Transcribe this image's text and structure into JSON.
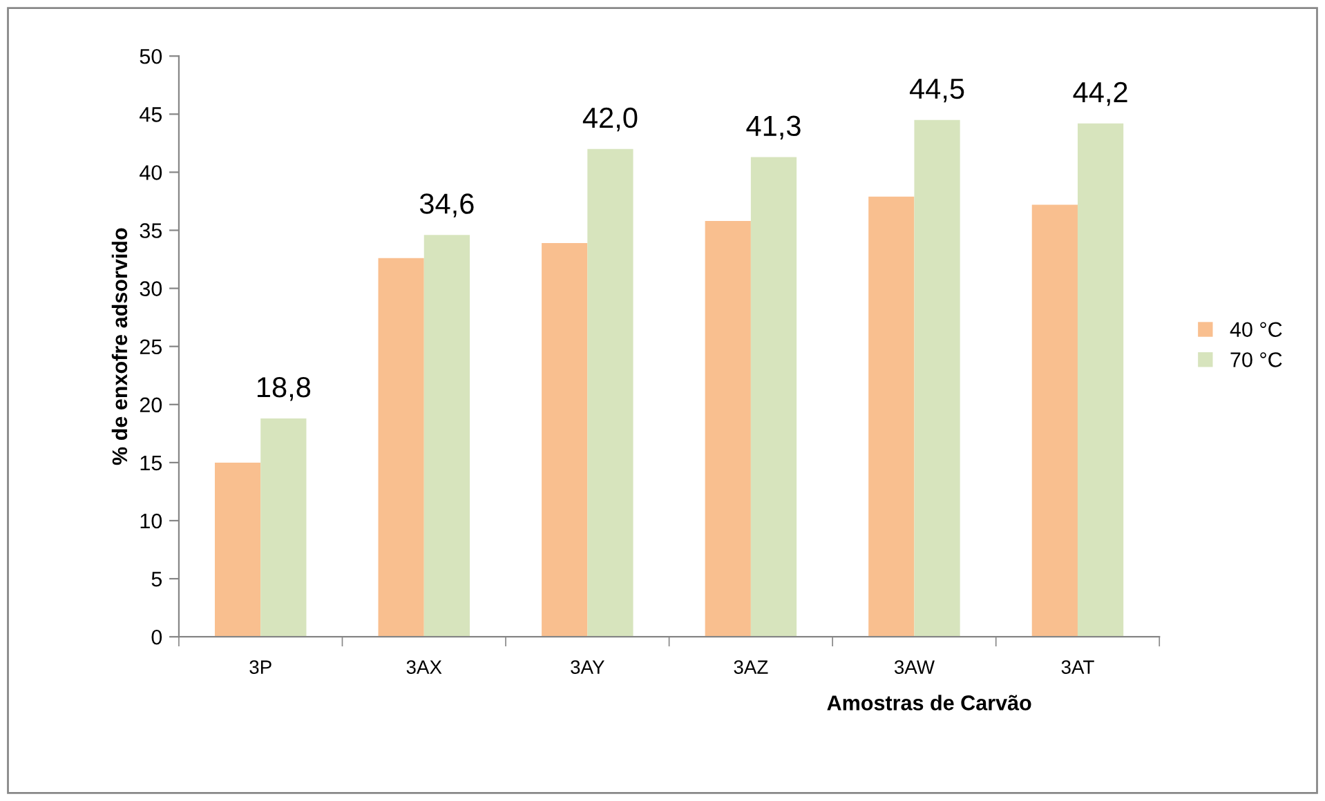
{
  "chart_data": {
    "type": "bar",
    "xlabel": "Amostras de Carvão",
    "ylabel": "% de enxofre adsorvido",
    "categories": [
      "3P",
      "3AX",
      "3AY",
      "3AZ",
      "3AW",
      "3AT"
    ],
    "series": [
      {
        "name": "40 °C",
        "color": "#f9bf8f",
        "values": [
          15.0,
          32.6,
          33.9,
          35.8,
          37.9,
          37.2
        ]
      },
      {
        "name": "70 °C",
        "color": "#d7e4bd",
        "values": [
          18.8,
          34.6,
          42.0,
          41.3,
          44.5,
          44.2
        ],
        "value_labels": [
          "18,8",
          "34,6",
          "42,0",
          "41,3",
          "44,5",
          "44,2"
        ]
      }
    ],
    "ylim": [
      0,
      50
    ],
    "yticks": [
      0,
      5,
      10,
      15,
      20,
      25,
      30,
      35,
      40,
      45,
      50
    ],
    "grid": false,
    "legend": "right"
  }
}
